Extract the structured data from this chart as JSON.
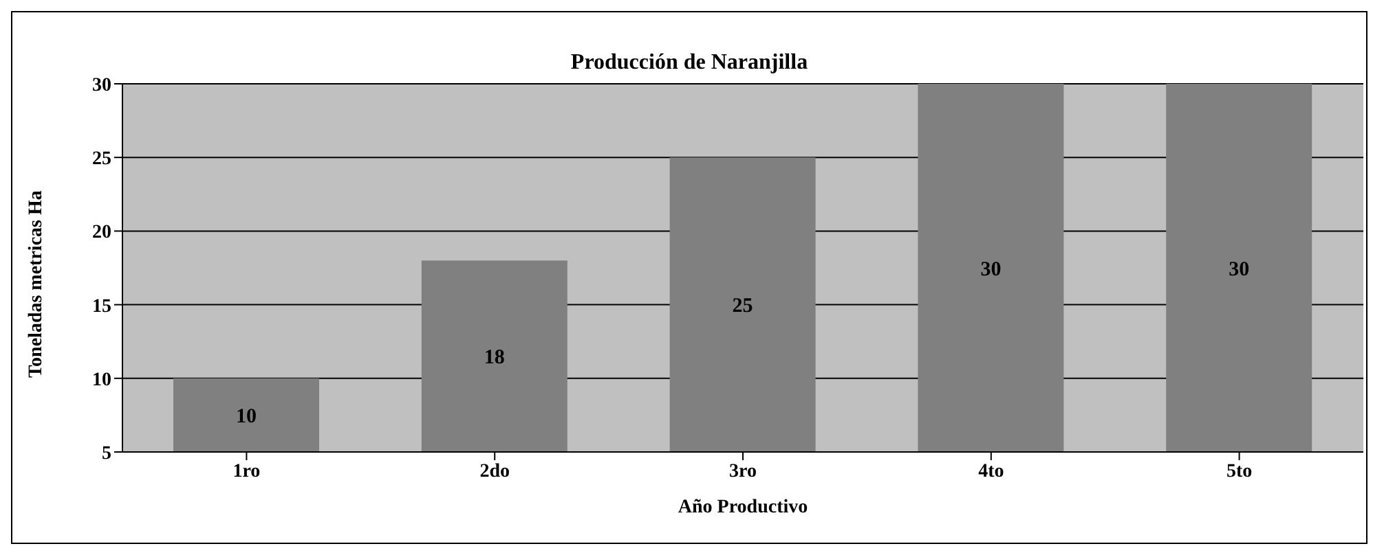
{
  "chart_data": {
    "type": "bar",
    "title": "Producción de Naranjilla",
    "xlabel": "Año Productivo",
    "ylabel": "Toneladas metricas Ha",
    "categories": [
      "1ro",
      "2do",
      "3ro",
      "4to",
      "5to"
    ],
    "values": [
      10,
      18,
      25,
      30,
      30
    ],
    "color": "#808080",
    "ylim": [
      5,
      30
    ],
    "yticks": [
      5,
      10,
      15,
      20,
      25,
      30
    ],
    "grid": "y",
    "data_labels": true
  }
}
